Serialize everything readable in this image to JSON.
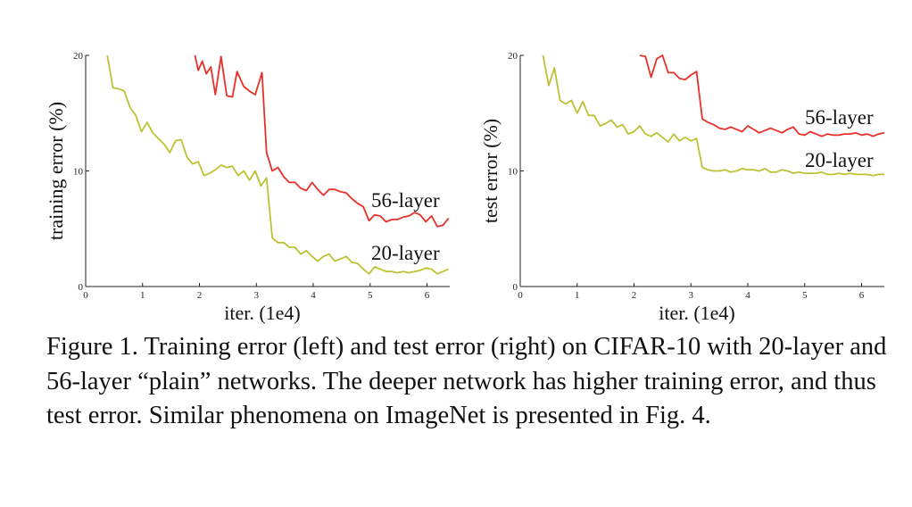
{
  "chart_data": [
    {
      "type": "line",
      "title": "",
      "xlabel": "iter. (1e4)",
      "ylabel": "training error (%)",
      "xlim": [
        0,
        6.4
      ],
      "ylim": [
        0,
        20
      ],
      "xticks": [
        0,
        1,
        2,
        3,
        4,
        5,
        6
      ],
      "yticks": [
        0,
        10,
        20
      ],
      "grid": false,
      "series": [
        {
          "name": "56-layer",
          "color": "#e8302a",
          "x": [
            1.92,
            1.98,
            2.05,
            2.12,
            2.2,
            2.28,
            2.38,
            2.48,
            2.58,
            2.66,
            2.78,
            2.88,
            2.98,
            3.1,
            3.18,
            3.28,
            3.38,
            3.48,
            3.58,
            3.68,
            3.78,
            3.88,
            3.98,
            4.08,
            4.18,
            4.28,
            4.38,
            4.48,
            4.58,
            4.68,
            4.78,
            4.88,
            4.98,
            5.08,
            5.18,
            5.28,
            5.38,
            5.48,
            5.58,
            5.68,
            5.78,
            5.88,
            5.98,
            6.08,
            6.18,
            6.28,
            6.38
          ],
          "y": [
            20.0,
            18.7,
            19.5,
            18.4,
            19.0,
            16.6,
            19.9,
            16.5,
            16.4,
            18.6,
            17.3,
            16.9,
            16.6,
            18.5,
            11.6,
            10.0,
            10.3,
            9.5,
            9.0,
            9.0,
            8.5,
            8.3,
            9.0,
            8.4,
            7.9,
            8.4,
            8.4,
            8.2,
            8.1,
            7.6,
            7.2,
            6.9,
            5.7,
            6.2,
            6.1,
            5.6,
            5.8,
            5.8,
            6.0,
            6.1,
            6.4,
            6.2,
            5.6,
            6.1,
            5.2,
            5.3,
            5.9
          ],
          "label": "56-layer"
        },
        {
          "name": "20-layer",
          "color": "#bdc234",
          "x": [
            0.38,
            0.48,
            0.58,
            0.68,
            0.78,
            0.88,
            0.98,
            1.08,
            1.18,
            1.28,
            1.38,
            1.48,
            1.58,
            1.68,
            1.78,
            1.88,
            1.98,
            2.08,
            2.18,
            2.28,
            2.38,
            2.48,
            2.58,
            2.68,
            2.78,
            2.88,
            2.98,
            3.08,
            3.18,
            3.28,
            3.38,
            3.48,
            3.58,
            3.68,
            3.78,
            3.88,
            3.98,
            4.08,
            4.18,
            4.28,
            4.38,
            4.48,
            4.58,
            4.68,
            4.78,
            4.88,
            4.98,
            5.08,
            5.18,
            5.28,
            5.38,
            5.48,
            5.58,
            5.68,
            5.78,
            5.88,
            5.98,
            6.08,
            6.18,
            6.28,
            6.38
          ],
          "y": [
            20.0,
            17.2,
            17.1,
            16.9,
            15.5,
            14.8,
            13.4,
            14.2,
            13.3,
            12.8,
            12.3,
            11.6,
            12.6,
            12.7,
            11.2,
            10.6,
            10.8,
            9.6,
            9.8,
            10.1,
            10.5,
            10.3,
            10.4,
            9.6,
            10.0,
            9.2,
            10.0,
            8.7,
            9.4,
            4.2,
            3.8,
            3.8,
            3.4,
            3.4,
            2.8,
            3.1,
            2.6,
            2.2,
            2.6,
            2.8,
            2.2,
            2.4,
            2.6,
            2.1,
            2.0,
            1.5,
            1.1,
            1.7,
            1.5,
            1.3,
            1.3,
            1.2,
            1.3,
            1.2,
            1.3,
            1.4,
            1.6,
            1.5,
            1.1,
            1.3,
            1.5
          ],
          "label": "20-layer"
        }
      ]
    },
    {
      "type": "line",
      "title": "",
      "xlabel": "iter. (1e4)",
      "ylabel": "test error (%)",
      "xlim": [
        0,
        6.4
      ],
      "ylim": [
        0,
        20
      ],
      "xticks": [
        0,
        1,
        2,
        3,
        4,
        5,
        6
      ],
      "yticks": [
        0,
        10,
        20
      ],
      "grid": false,
      "series": [
        {
          "name": "56-layer",
          "color": "#e8302a",
          "x": [
            2.1,
            2.2,
            2.3,
            2.4,
            2.5,
            2.6,
            2.7,
            2.8,
            2.9,
            3.0,
            3.1,
            3.2,
            3.3,
            3.4,
            3.5,
            3.6,
            3.7,
            3.8,
            3.9,
            4.0,
            4.1,
            4.2,
            4.3,
            4.4,
            4.5,
            4.6,
            4.7,
            4.8,
            4.9,
            5.0,
            5.1,
            5.2,
            5.3,
            5.4,
            5.5,
            5.6,
            5.7,
            5.8,
            5.9,
            6.0,
            6.1,
            6.2,
            6.3,
            6.4
          ],
          "y": [
            20.0,
            19.9,
            18.1,
            19.7,
            20.0,
            18.5,
            18.5,
            18.0,
            17.9,
            18.3,
            18.6,
            14.5,
            14.2,
            14.0,
            13.7,
            13.6,
            13.8,
            13.6,
            13.4,
            13.9,
            13.6,
            13.3,
            13.5,
            13.7,
            13.5,
            13.3,
            13.6,
            13.8,
            13.2,
            13.1,
            13.4,
            13.2,
            13.0,
            13.2,
            13.1,
            13.1,
            13.2,
            13.2,
            13.3,
            13.1,
            13.2,
            13.0,
            13.2,
            13.3
          ],
          "label": "56-layer"
        },
        {
          "name": "20-layer",
          "color": "#bdc234",
          "x": [
            0.4,
            0.5,
            0.6,
            0.7,
            0.8,
            0.9,
            1.0,
            1.1,
            1.2,
            1.3,
            1.4,
            1.5,
            1.6,
            1.7,
            1.8,
            1.9,
            2.0,
            2.1,
            2.2,
            2.3,
            2.4,
            2.5,
            2.6,
            2.7,
            2.8,
            2.9,
            3.0,
            3.1,
            3.2,
            3.3,
            3.4,
            3.5,
            3.6,
            3.7,
            3.8,
            3.9,
            4.0,
            4.1,
            4.2,
            4.3,
            4.4,
            4.5,
            4.6,
            4.7,
            4.8,
            4.9,
            5.0,
            5.1,
            5.2,
            5.3,
            5.4,
            5.5,
            5.6,
            5.7,
            5.8,
            5.9,
            6.0,
            6.1,
            6.2,
            6.3,
            6.4
          ],
          "y": [
            20.0,
            17.4,
            18.9,
            16.1,
            15.8,
            16.1,
            15.0,
            16.0,
            14.8,
            14.8,
            13.9,
            14.1,
            14.4,
            13.8,
            14.0,
            13.2,
            13.4,
            13.9,
            13.2,
            13.0,
            13.3,
            12.9,
            12.5,
            13.2,
            12.6,
            12.9,
            12.6,
            12.8,
            10.3,
            10.1,
            10.0,
            10.0,
            10.1,
            9.9,
            10.0,
            10.2,
            10.1,
            10.1,
            10.0,
            10.2,
            9.9,
            9.9,
            10.1,
            10.0,
            9.8,
            9.9,
            9.8,
            9.8,
            9.8,
            9.9,
            9.7,
            9.7,
            9.8,
            9.7,
            9.8,
            9.7,
            9.7,
            9.7,
            9.6,
            9.7,
            9.7
          ],
          "label": "20-layer"
        }
      ]
    }
  ],
  "caption": "Figure 1. Training error (left) and test error (right) on CIFAR-10 with 20-layer and 56-layer “plain” networks. The deeper network has higher training error, and thus test error. Similar phenomena on ImageNet is presented in Fig. 4."
}
